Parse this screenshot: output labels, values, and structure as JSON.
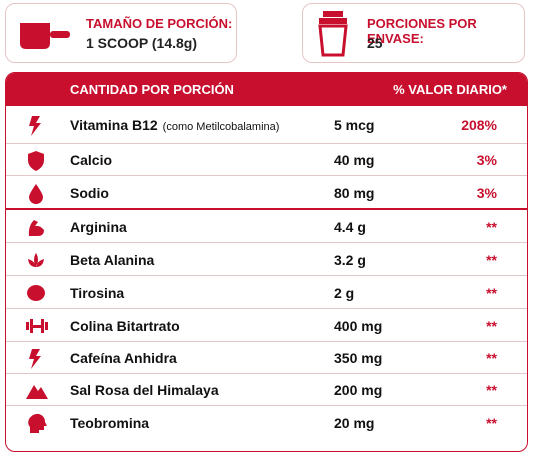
{
  "serving": {
    "label": "TAMAÑO DE PORCIÓN:",
    "value": "1 SCOOP (14.8g)"
  },
  "servings_per_container": {
    "label": "PORCIONES POR ENVASE:",
    "value": "25"
  },
  "table": {
    "header": [
      "CANTIDAD POR PORCIÓN",
      "% VALOR DIARIO*"
    ],
    "rows": [
      {
        "name": "Vitamina B12",
        "note": "(como Metilcobalamina)",
        "amount": "5 mcg",
        "dv": "208%"
      },
      {
        "name": "Calcio",
        "amount": "40 mg",
        "dv": "3%"
      },
      {
        "name": "Sodio",
        "amount": "80 mg",
        "dv": "3%"
      },
      {
        "name": "Arginina",
        "amount": "4.4 g",
        "dv": "**"
      },
      {
        "name": "Beta Alanina",
        "amount": "3.2 g",
        "dv": "**"
      },
      {
        "name": "Tirosina",
        "amount": "2 g",
        "dv": "**"
      },
      {
        "name": "Colina Bitartrato",
        "amount": "400 mg",
        "dv": "**"
      },
      {
        "name": "Cafeína Anhidra",
        "amount": "350 mg",
        "dv": "**"
      },
      {
        "name": "Sal Rosa del Himalaya",
        "amount": "200 mg",
        "dv": "**"
      },
      {
        "name": "Teobromina",
        "amount": "20 mg",
        "dv": "**"
      }
    ]
  }
}
